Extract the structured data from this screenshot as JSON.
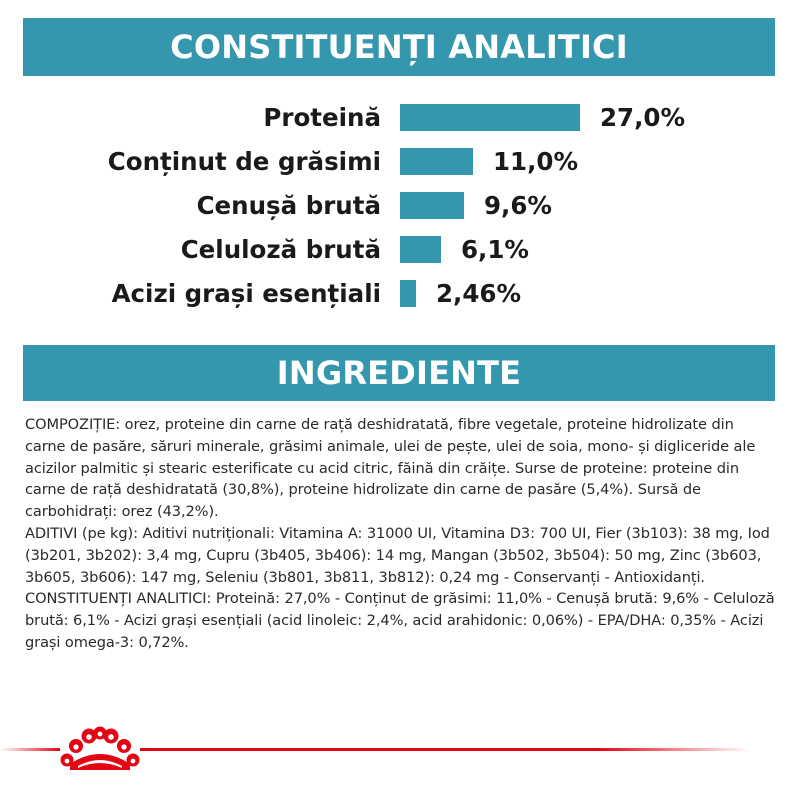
{
  "analytic_section": {
    "title": "CONSTITUENȚI ANALITICI",
    "items": [
      {
        "label": "Proteină",
        "value_text": "27,0%",
        "value": 27.0
      },
      {
        "label": "Conținut de grăsimi",
        "value_text": "11,0%",
        "value": 11.0
      },
      {
        "label": "Cenușă brută",
        "value_text": "9,6%",
        "value": 9.6
      },
      {
        "label": "Celuloză brută",
        "value_text": "6,1%",
        "value": 6.1
      },
      {
        "label": "Acizi grași esențiali",
        "value_text": "2,46%",
        "value": 2.46
      }
    ]
  },
  "ingredients_section": {
    "title": "INGREDIENTE",
    "paragraphs": [
      "COMPOZIȚIE: orez, proteine din carne de rață deshidratată, fibre vegetale, proteine hidrolizate din carne de pasăre, săruri minerale, grăsimi animale, ulei de pește, ulei de soia, mono- și digliceride ale acizilor palmitic și stearic esterificate cu acid citric, făină din crăițe. Surse de proteine: proteine din carne de rață deshidratată (30,8%), proteine hidrolizate din carne de pasăre (5,4%). Sursă de carbohidrați: orez (43,2%).",
      "ADITIVI (pe kg): Aditivi nutriționali: Vitamina A: 31000 UI, Vitamina D3: 700 UI, Fier (3b103): 38 mg, Iod (3b201, 3b202): 3,4 mg, Cupru (3b405, 3b406): 14 mg, Mangan (3b502, 3b504): 50 mg, Zinc (3b603, 3b605, 3b606): 147 mg, Seleniu (3b801, 3b811, 3b812): 0,24 mg - Conservanți - Antioxidanți.",
      "CONSTITUENȚI ANALITICI: Proteină: 27,0% - Conținut de grăsimi: 11,0% - Cenușă brută: 9,6% - Celuloză brută: 6,1% - Acizi grași esențiali (acid linoleic: 2,4%, acid arahidonic: 0,06%) - EPA/DHA: 0,35% - Acizi grași omega-3: 0,72%."
    ]
  },
  "footer": {
    "logo_icon": "royal-canin-crown-icon"
  },
  "colors": {
    "accent": "#3497ad",
    "brand_red": "#e30513",
    "text": "#1a1a1a"
  }
}
